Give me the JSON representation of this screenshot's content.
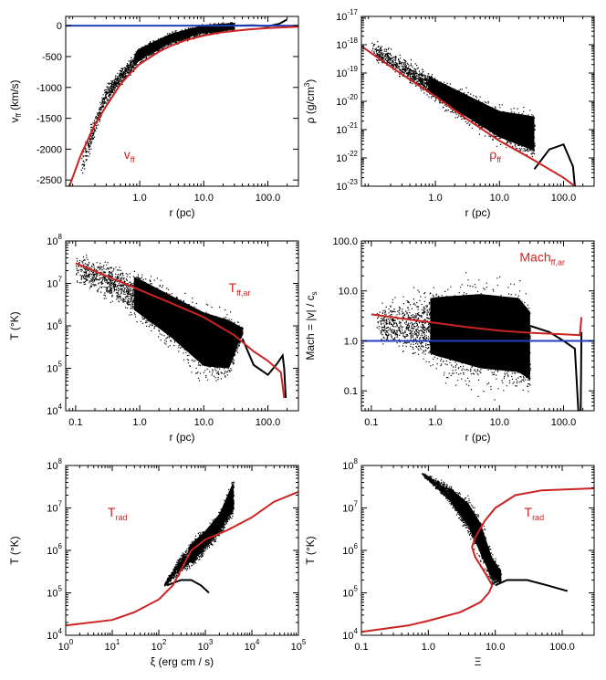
{
  "colors": {
    "model": "#cc2222",
    "reference": "#1f3fbf",
    "data": "#000000"
  },
  "chart_data": [
    {
      "type": "scatter",
      "id": "p1",
      "xscale": "log",
      "yscale": "linear",
      "xlim": [
        0.07,
        300
      ],
      "ylim": [
        -2600,
        150
      ],
      "xticks": [
        {
          "v": 1,
          "t": "1.0"
        },
        {
          "v": 10,
          "t": "10.0"
        },
        {
          "v": 100,
          "t": "100.0"
        }
      ],
      "yticks": [
        {
          "v": 0,
          "t": "0"
        },
        {
          "v": -500,
          "t": "-500"
        },
        {
          "v": -1000,
          "t": "-1000"
        },
        {
          "v": -1500,
          "t": "-1500"
        },
        {
          "v": -2000,
          "t": "-2000"
        },
        {
          "v": -2500,
          "t": "-2500"
        }
      ],
      "xlabel": {
        "main": "r",
        "unit": "(pc)"
      },
      "ylabel": {
        "main": "v",
        "sub": "ff",
        "unit": "(km/s)"
      },
      "annotation": {
        "main": "v",
        "sub": "ff"
      },
      "hline": 0,
      "model_curve": [
        [
          0.08,
          -2600
        ],
        [
          0.12,
          -2100
        ],
        [
          0.2,
          -1600
        ],
        [
          0.3,
          -1300
        ],
        [
          0.5,
          -950
        ],
        [
          0.7,
          -780
        ],
        [
          1,
          -620
        ],
        [
          2,
          -420
        ],
        [
          3,
          -330
        ],
        [
          5,
          -240
        ],
        [
          10,
          -160
        ],
        [
          20,
          -105
        ],
        [
          50,
          -60
        ],
        [
          100,
          -38
        ],
        [
          300,
          -15
        ]
      ],
      "cloud": {
        "xr": [
          0.12,
          30
        ],
        "lower": [
          [
            0.12,
            -2600
          ],
          [
            0.3,
            -1300
          ],
          [
            1,
            -640
          ],
          [
            3,
            -340
          ],
          [
            10,
            -170
          ],
          [
            30,
            -90
          ]
        ],
        "upper": [
          [
            0.12,
            -1900
          ],
          [
            0.3,
            -900
          ],
          [
            1,
            -300
          ],
          [
            3,
            -80
          ],
          [
            10,
            60
          ],
          [
            30,
            80
          ]
        ]
      },
      "tail": [
        [
          30,
          0
        ],
        [
          60,
          5
        ],
        [
          100,
          -10
        ],
        [
          150,
          30
        ],
        [
          200,
          100
        ]
      ]
    },
    {
      "type": "scatter",
      "id": "p2",
      "xscale": "log",
      "yscale": "log",
      "xlim": [
        0.07,
        300
      ],
      "ylim": [
        1e-23,
        1e-17
      ],
      "xticks": [
        {
          "v": 1,
          "t": "1.0"
        },
        {
          "v": 10,
          "t": "10.0"
        },
        {
          "v": 100,
          "t": "100.0"
        }
      ],
      "yticks": [
        {
          "v": 1e-17,
          "e": "-17"
        },
        {
          "v": 1e-18,
          "e": "-18"
        },
        {
          "v": 1e-19,
          "e": "-19"
        },
        {
          "v": 1e-20,
          "e": "-20"
        },
        {
          "v": 1e-21,
          "e": "-21"
        },
        {
          "v": 1e-22,
          "e": "-22"
        },
        {
          "v": 1e-23,
          "e": "-23"
        }
      ],
      "xlabel": {
        "main": "r",
        "unit": "(pc)"
      },
      "ylabel": {
        "main": "ρ",
        "unit": "(g/cm",
        "sup": "3",
        "close": ")"
      },
      "annotation": {
        "main": "ρ",
        "sub": "ff"
      },
      "model_curve": [
        [
          0.07,
          9e-19
        ],
        [
          0.1,
          5e-19
        ],
        [
          0.3,
          9e-20
        ],
        [
          1,
          1.5e-20
        ],
        [
          3,
          2.5e-21
        ],
        [
          10,
          4e-22
        ],
        [
          30,
          1e-22
        ],
        [
          100,
          2e-23
        ],
        [
          150,
          1e-23
        ]
      ],
      "cloud": {
        "xr": [
          0.1,
          35
        ],
        "lower": [
          [
            0.1,
            3e-19
          ],
          [
            1,
            7e-21
          ],
          [
            10,
            2e-22
          ],
          [
            35,
            5e-23
          ]
        ],
        "upper": [
          [
            0.1,
            2e-18
          ],
          [
            1,
            1e-19
          ],
          [
            10,
            1e-20
          ],
          [
            35,
            8e-21
          ]
        ]
      },
      "tail": [
        [
          35,
          4e-23
        ],
        [
          60,
          2e-22
        ],
        [
          100,
          3e-22
        ],
        [
          140,
          5e-23
        ],
        [
          150,
          1e-23
        ]
      ]
    },
    {
      "type": "scatter",
      "id": "p3",
      "xscale": "log",
      "yscale": "log",
      "xlim": [
        0.07,
        300
      ],
      "ylim": [
        10000.0,
        100000000.0
      ],
      "xticks": [
        {
          "v": 0.1,
          "t": "0.1"
        },
        {
          "v": 1,
          "t": "1.0"
        },
        {
          "v": 10,
          "t": "10.0"
        },
        {
          "v": 100,
          "t": "100.0"
        }
      ],
      "yticks": [
        {
          "v": 10000.0,
          "e": "4"
        },
        {
          "v": 100000.0,
          "e": "5"
        },
        {
          "v": 1000000.0,
          "e": "6"
        },
        {
          "v": 10000000.0,
          "e": "7"
        },
        {
          "v": 100000000.0,
          "e": "8"
        }
      ],
      "xlabel": {
        "main": "r",
        "unit": "(pc)"
      },
      "ylabel": {
        "main": "T",
        "unit": "(°K)"
      },
      "annotation": {
        "main": "T",
        "sub": "ff,ar"
      },
      "model_curve": [
        [
          0.1,
          30000000.0
        ],
        [
          0.3,
          15000000.0
        ],
        [
          1,
          7000000.0
        ],
        [
          3,
          3500000.0
        ],
        [
          10,
          1600000.0
        ],
        [
          30,
          600000.0
        ],
        [
          60,
          250000.0
        ],
        [
          100,
          150000.0
        ],
        [
          160,
          80000.0
        ],
        [
          180,
          20000.0
        ]
      ],
      "cloud": {
        "xr": [
          0.1,
          40
        ],
        "lower": [
          [
            0.1,
            8000000.0
          ],
          [
            0.5,
            2000000.0
          ],
          [
            1,
            800000.0
          ],
          [
            3,
            200000.0
          ],
          [
            10,
            30000.0
          ],
          [
            25,
            30000.0
          ],
          [
            40,
            600000.0
          ]
        ],
        "upper": [
          [
            0.1,
            70000000.0
          ],
          [
            0.5,
            35000000.0
          ],
          [
            1,
            25000000.0
          ],
          [
            3,
            12000000.0
          ],
          [
            10,
            6000000.0
          ],
          [
            25,
            3500000.0
          ],
          [
            40,
            1000000.0
          ]
        ]
      },
      "tail": [
        [
          40,
          500000.0
        ],
        [
          60,
          120000.0
        ],
        [
          100,
          70000.0
        ],
        [
          140,
          130000.0
        ],
        [
          170,
          200000.0
        ],
        [
          180,
          100000.0
        ],
        [
          190,
          20000.0
        ]
      ]
    },
    {
      "type": "scatter",
      "id": "p4",
      "xscale": "log",
      "yscale": "log",
      "xlim": [
        0.07,
        300
      ],
      "ylim": [
        0.04,
        100
      ],
      "xticks": [
        {
          "v": 0.1,
          "t": "0.1"
        },
        {
          "v": 1,
          "t": "1.0"
        },
        {
          "v": 10,
          "t": "10.0"
        },
        {
          "v": 100,
          "t": "100.0"
        }
      ],
      "yticks": [
        {
          "v": 0.1,
          "t": "0.1"
        },
        {
          "v": 1,
          "t": "1.0"
        },
        {
          "v": 10,
          "t": "10.0"
        },
        {
          "v": 100,
          "t": "100.0"
        }
      ],
      "xlabel": {
        "main": "r",
        "unit": "(pc)"
      },
      "ylabel": {
        "main": "Mach = |v| / c",
        "sub": "s"
      },
      "annotation": {
        "main": "Mach",
        "sub": "ff,ar"
      },
      "hline": 1,
      "model_curve": [
        [
          0.1,
          3.4
        ],
        [
          0.3,
          2.8
        ],
        [
          1,
          2.3
        ],
        [
          3,
          1.9
        ],
        [
          10,
          1.6
        ],
        [
          30,
          1.45
        ],
        [
          100,
          1.35
        ],
        [
          180,
          1.3
        ],
        [
          190,
          3
        ]
      ],
      "cloud": {
        "xr": [
          0.12,
          30
        ],
        "lower": [
          [
            0.12,
            0.9
          ],
          [
            1,
            0.15
          ],
          [
            5,
            0.06
          ],
          [
            20,
            0.05
          ],
          [
            30,
            0.04
          ]
        ],
        "upper": [
          [
            0.12,
            6
          ],
          [
            1,
            20
          ],
          [
            5,
            30
          ],
          [
            20,
            25
          ],
          [
            30,
            12
          ]
        ]
      },
      "tail": [
        [
          30,
          2
        ],
        [
          60,
          1.5
        ],
        [
          100,
          1
        ],
        [
          150,
          0.7
        ],
        [
          170,
          0.04
        ],
        [
          185,
          0.04
        ],
        [
          190,
          1.5
        ]
      ]
    },
    {
      "type": "scatter",
      "id": "p5",
      "xscale": "log",
      "yscale": "log",
      "xlim": [
        1,
        100000.0
      ],
      "ylim": [
        10000.0,
        100000000.0
      ],
      "xticks": [
        {
          "v": 1,
          "e": "0"
        },
        {
          "v": 10,
          "e": "1"
        },
        {
          "v": 100,
          "e": "2"
        },
        {
          "v": 1000,
          "e": "3"
        },
        {
          "v": 10000,
          "e": "4"
        },
        {
          "v": 100000,
          "e": "5"
        }
      ],
      "yticks": [
        {
          "v": 10000.0,
          "e": "4"
        },
        {
          "v": 100000.0,
          "e": "5"
        },
        {
          "v": 1000000.0,
          "e": "6"
        },
        {
          "v": 10000000.0,
          "e": "7"
        },
        {
          "v": 100000000.0,
          "e": "8"
        }
      ],
      "xlabel": {
        "main": "ξ",
        "unit": "(erg cm / s)"
      },
      "ylabel": {
        "main": "T",
        "unit": "(°K)"
      },
      "annotation": {
        "main": "T",
        "sub": "rad"
      },
      "model_curve": [
        [
          1,
          17000.0
        ],
        [
          10,
          23000.0
        ],
        [
          30,
          35000.0
        ],
        [
          100,
          70000.0
        ],
        [
          200,
          150000.0
        ],
        [
          300,
          350000.0
        ],
        [
          500,
          1000000.0
        ],
        [
          1000,
          1800000.0
        ],
        [
          3000,
          3000000.0
        ],
        [
          10000,
          6000000.0
        ],
        [
          30000,
          14000000.0
        ],
        [
          100000,
          24000000.0
        ]
      ],
      "cloud": {
        "xr": [
          130,
          4000
        ],
        "lower": [
          [
            130,
            140000.0
          ],
          [
            300,
            250000.0
          ],
          [
            600,
            400000.0
          ],
          [
            1000,
            800000.0
          ],
          [
            2000,
            2000000.0
          ],
          [
            4000,
            5000000.0
          ]
        ],
        "upper": [
          [
            130,
            180000.0
          ],
          [
            300,
            1000000.0
          ],
          [
            600,
            2500000.0
          ],
          [
            1000,
            4000000.0
          ],
          [
            2000,
            10000000.0
          ],
          [
            4000,
            70000000.0
          ]
        ]
      },
      "tail": [
        [
          150,
          150000.0
        ],
        [
          300,
          200000.0
        ],
        [
          500,
          200000.0
        ],
        [
          800,
          150000.0
        ],
        [
          1200,
          100000.0
        ]
      ]
    },
    {
      "type": "scatter",
      "id": "p6",
      "xscale": "log",
      "yscale": "log",
      "xlim": [
        0.1,
        300
      ],
      "ylim": [
        10000.0,
        100000000.0
      ],
      "xticks": [
        {
          "v": 0.1,
          "t": "0.1"
        },
        {
          "v": 1,
          "t": "1.0"
        },
        {
          "v": 10,
          "t": "10.0"
        },
        {
          "v": 100,
          "t": "100.0"
        }
      ],
      "yticks": [
        {
          "v": 10000.0,
          "e": "4"
        },
        {
          "v": 100000.0,
          "e": "5"
        },
        {
          "v": 1000000.0,
          "e": "6"
        },
        {
          "v": 10000000.0,
          "e": "7"
        },
        {
          "v": 100000000.0,
          "e": "8"
        }
      ],
      "xlabel": {
        "main": "Ξ",
        "unit": ""
      },
      "ylabel": {
        "main": "T",
        "unit": "(°K)"
      },
      "annotation": {
        "main": "T",
        "sub": "rad"
      },
      "model_curve": [
        [
          0.1,
          12000.0
        ],
        [
          0.5,
          17000.0
        ],
        [
          1,
          22000.0
        ],
        [
          3,
          35000.0
        ],
        [
          6,
          60000.0
        ],
        [
          8,
          100000.0
        ],
        [
          9,
          150000.0
        ],
        [
          7,
          300000.0
        ],
        [
          5,
          700000.0
        ],
        [
          4.5,
          1200000.0
        ],
        [
          5,
          2000000.0
        ],
        [
          7,
          5000000.0
        ],
        [
          10,
          10000000.0
        ],
        [
          20,
          20000000.0
        ],
        [
          50,
          26000000.0
        ],
        [
          300,
          29000000.0
        ]
      ],
      "cloud": {
        "xr": [
          0.8,
          12
        ],
        "lower": [
          [
            0.8,
            60000000.0
          ],
          [
            2,
            12000000.0
          ],
          [
            4,
            2000000.0
          ],
          [
            6,
            400000.0
          ],
          [
            9,
            120000.0
          ],
          [
            12,
            150000.0
          ]
        ],
        "upper": [
          [
            0.8,
            70000000.0
          ],
          [
            2,
            40000000.0
          ],
          [
            4,
            20000000.0
          ],
          [
            6,
            8000000.0
          ],
          [
            9,
            1000000.0
          ],
          [
            12,
            400000.0
          ]
        ]
      },
      "tail": [
        [
          10,
          150000.0
        ],
        [
          15,
          200000.0
        ],
        [
          30,
          200000.0
        ],
        [
          60,
          150000.0
        ],
        [
          120,
          110000.0
        ]
      ]
    }
  ]
}
